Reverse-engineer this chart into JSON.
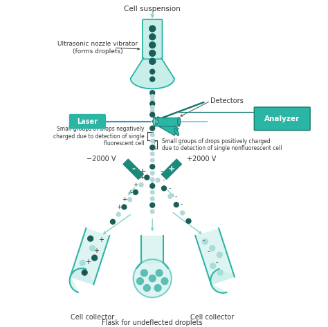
{
  "bg_color": "#ffffff",
  "teal": "#2ab5a5",
  "teal_light": "#7dd5c8",
  "teal_dark": "#1a8a7a",
  "teal_fill": "#c8eeea",
  "dark_teal": "#1a7a70",
  "cell_dark": "#1a5e58",
  "cell_light": "#a8ddd8",
  "cell_mid": "#5bbfb5",
  "text_color": "#333333",
  "labels": {
    "cell_suspension": "Cell suspension",
    "nozzle": "Ultrasonic nozzle vibrator\n(forms droplets)",
    "laser": "Laser",
    "detectors": "Detectors",
    "analyzer": "Analyzer",
    "neg_charge": "Small groups of drops negatively\ncharged due to detection of single\nfluorescent cell",
    "pos_charge": "Small groups of drops positively charged\ndue to detection of single nonfluorescent cell",
    "neg2000": "−2000 V",
    "pos2000": "+2000 V",
    "cell_collector_left": "Cell collector",
    "cell_collector_right": "Cell collector",
    "flask_label": "Flask for undeflected droplets"
  }
}
